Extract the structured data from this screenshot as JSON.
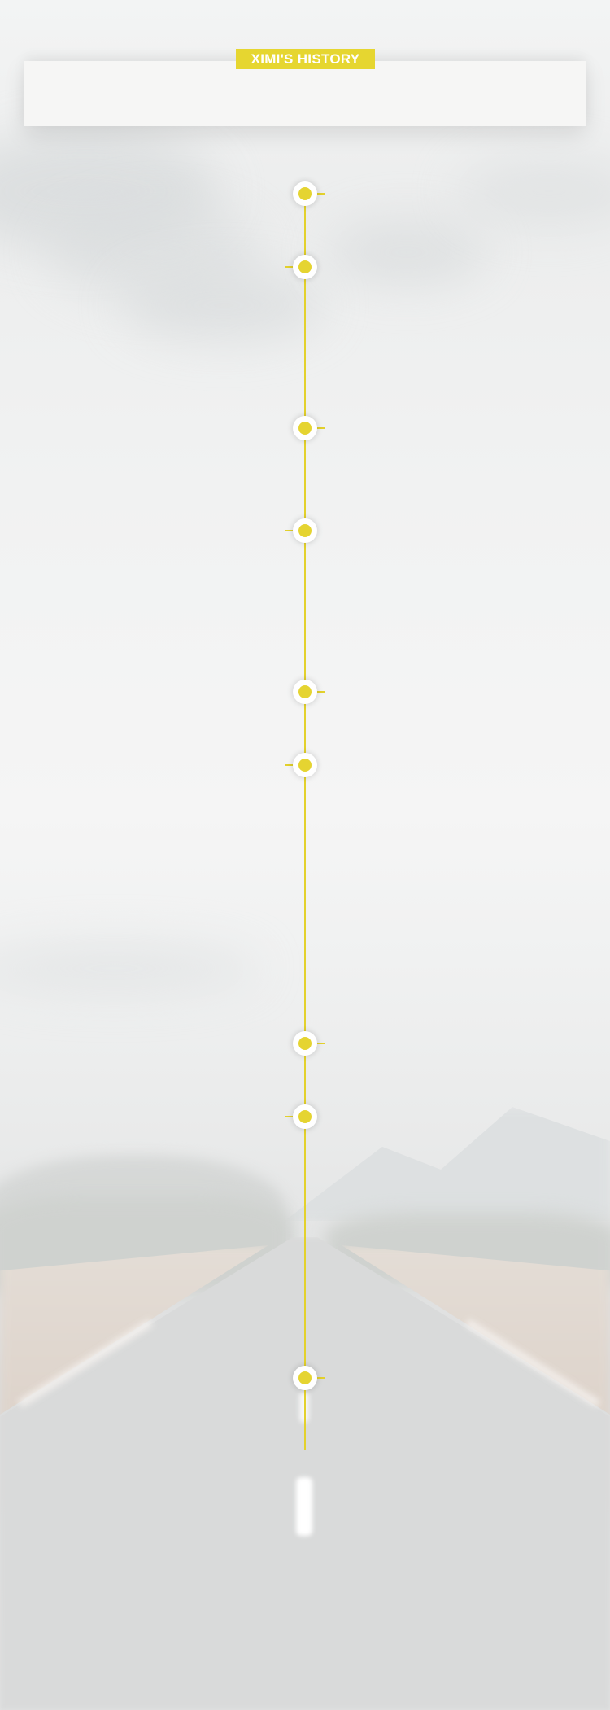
{
  "header": {
    "title": "XIMI'S HISTORY"
  },
  "timeline": {
    "accent_color": "#e5d431",
    "events": [
      {
        "side": "right",
        "icon": "timeline-dot-icon"
      },
      {
        "side": "left",
        "icon": "timeline-dot-icon"
      },
      {
        "side": "right",
        "icon": "timeline-dot-icon"
      },
      {
        "side": "left",
        "icon": "timeline-dot-icon"
      },
      {
        "side": "right",
        "icon": "timeline-dot-icon"
      },
      {
        "side": "left",
        "icon": "timeline-dot-icon"
      },
      {
        "side": "right",
        "icon": "timeline-dot-icon"
      },
      {
        "side": "left",
        "icon": "timeline-dot-icon"
      },
      {
        "side": "right",
        "icon": "timeline-dot-icon"
      }
    ]
  }
}
